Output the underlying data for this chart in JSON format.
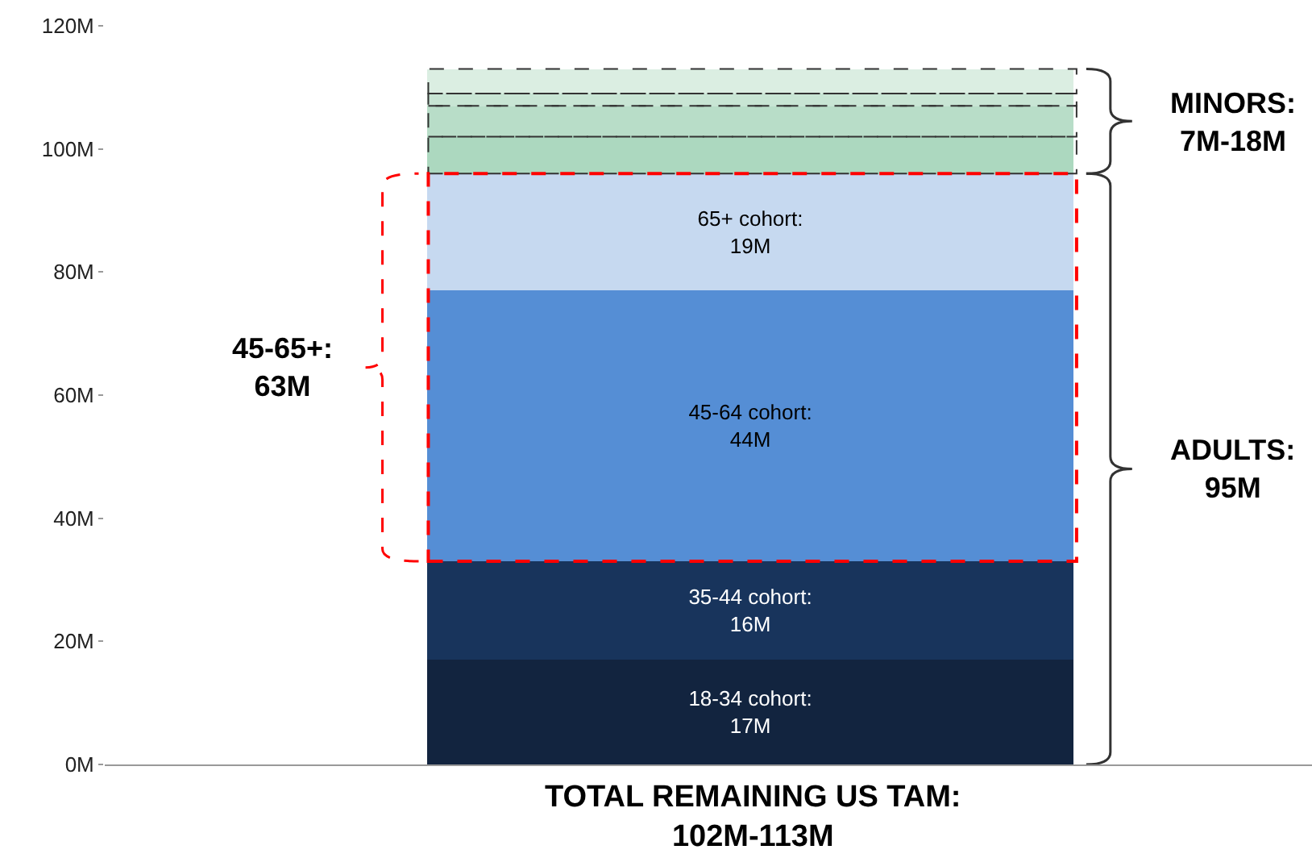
{
  "chart_data": {
    "type": "bar",
    "stacked": true,
    "categories": [
      null
    ],
    "xlabel": "TOTAL REMAINING US TAM:\n102M-113M",
    "series": [
      {
        "name": "18-34 cohort:",
        "color": "#12243f",
        "values": [
          17
        ],
        "value_labels": [
          "17M"
        ]
      },
      {
        "name": "35-44 cohort:",
        "color": "#18345c",
        "values": [
          16
        ],
        "value_labels": [
          "16M"
        ]
      },
      {
        "name": "45-64 cohort:",
        "color": "#558ed5",
        "values": [
          44
        ],
        "value_labels": [
          "44M"
        ]
      },
      {
        "name": "65+ cohort:",
        "color": "#c6d9f0",
        "values": [
          19
        ],
        "value_labels": [
          "19M"
        ]
      },
      {
        "color": "#acd8bf",
        "values": [
          6
        ],
        "line_style": "dashed"
      },
      {
        "color": "#b8ddc8",
        "values": [
          5
        ],
        "line_style": "dashed"
      },
      {
        "color": "#c8e5d4",
        "values": [
          2
        ],
        "line_style": "dashed"
      },
      {
        "color": "#dbeee2",
        "values": [
          4
        ],
        "line_style": "dashed"
      }
    ],
    "annotations": [
      "45-65+:\n63M",
      "MINORS:\n7M-18M",
      "ADULTS:\n95M"
    ],
    "ylim": [
      0,
      120
    ],
    "yticks": [
      {
        "value": 0,
        "label": "0M"
      },
      {
        "value": 20,
        "label": "20M"
      },
      {
        "value": 40,
        "label": "40M"
      },
      {
        "value": 60,
        "label": "60M"
      },
      {
        "value": 80,
        "label": "80M"
      },
      {
        "value": 100,
        "label": "100M"
      },
      {
        "value": 120,
        "label": "120M"
      }
    ],
    "legend": false
  }
}
